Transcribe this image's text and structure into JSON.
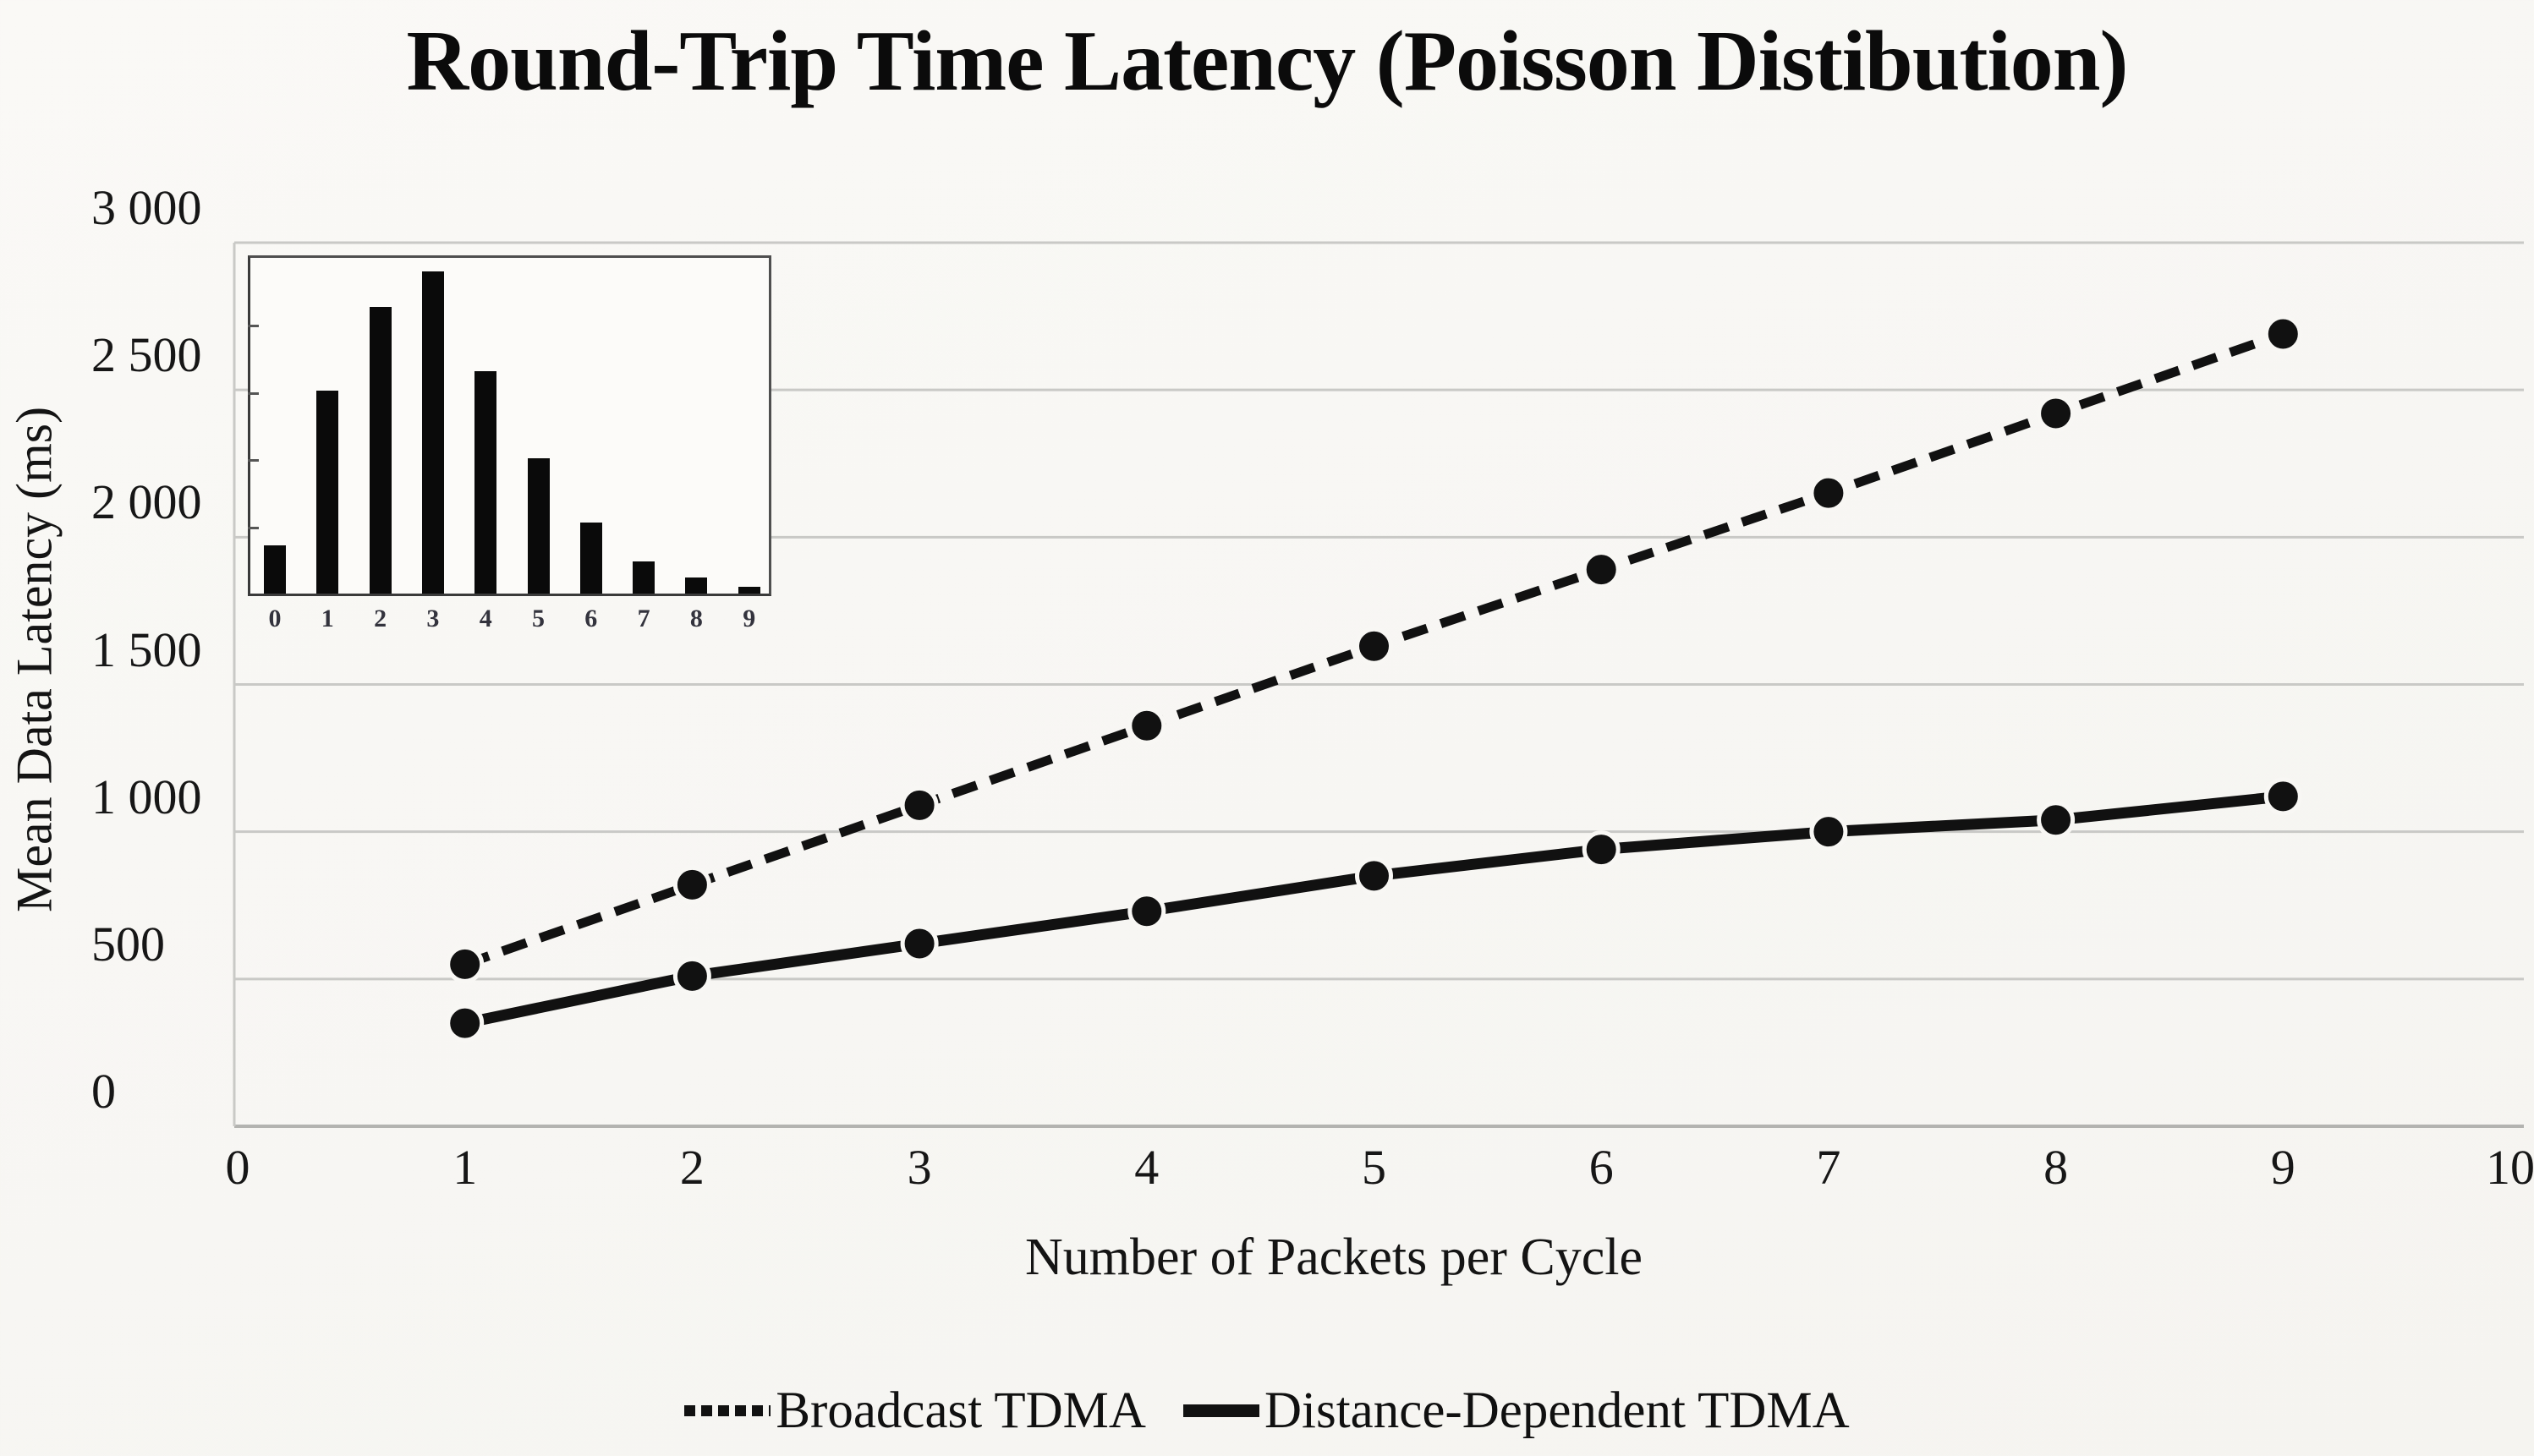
{
  "title": "Round-Trip Time Latency (Poisson Distibution)",
  "colors": {
    "ink": "#111111",
    "grid": "#c9c9c6",
    "zero_axis": "#b3b3b0",
    "background": "#f8f7f4",
    "inset_border": "#4f4f4f",
    "inset_bar": "#0a0a0a"
  },
  "chart_data": {
    "type": "line",
    "title": "Round-Trip Time Latency (Poisson Distibution)",
    "xlabel": "Number of Packets per Cycle",
    "ylabel": "Mean Data Latency (ms)",
    "xlim": [
      0,
      10
    ],
    "ylim": [
      0,
      3000
    ],
    "grid": "horizontal",
    "legend_position": "bottom",
    "x": [
      1,
      2,
      3,
      4,
      5,
      6,
      7,
      8,
      9
    ],
    "series": [
      {
        "name": "Broadcast TDMA",
        "line_style": "dashed",
        "marker": "circle",
        "color": "#111111",
        "values": [
          550,
          820,
          1090,
          1360,
          1630,
          1890,
          2150,
          2420,
          2690
        ]
      },
      {
        "name": "Distance-Dependent TDMA",
        "line_style": "solid",
        "marker": "circle",
        "color": "#111111",
        "values": [
          350,
          510,
          620,
          730,
          850,
          940,
          1000,
          1040,
          1120
        ]
      }
    ],
    "yticks": [
      {
        "value": 0,
        "label": "0"
      },
      {
        "value": 500,
        "label": "500"
      },
      {
        "value": 1000,
        "label": "1 000"
      },
      {
        "value": 1500,
        "label": "1 500"
      },
      {
        "value": 2000,
        "label": "2 000"
      },
      {
        "value": 2500,
        "label": "2 500"
      },
      {
        "value": 3000,
        "label": "3 000"
      }
    ],
    "xticks": [
      {
        "value": 0,
        "label": "0"
      },
      {
        "value": 1,
        "label": "1"
      },
      {
        "value": 2,
        "label": "2"
      },
      {
        "value": 3,
        "label": "3"
      },
      {
        "value": 4,
        "label": "4"
      },
      {
        "value": 5,
        "label": "5"
      },
      {
        "value": 6,
        "label": "6"
      },
      {
        "value": 7,
        "label": "7"
      },
      {
        "value": 8,
        "label": "8"
      },
      {
        "value": 9,
        "label": "9"
      },
      {
        "value": 10,
        "label": "10"
      }
    ],
    "inset": {
      "type": "bar",
      "description": "Poisson distribution histogram (no axis value labels shown)",
      "categories": [
        "0",
        "1",
        "2",
        "3",
        "4",
        "5",
        "6",
        "7",
        "8",
        "9"
      ],
      "values_relative": [
        0.15,
        0.63,
        0.89,
        1.0,
        0.69,
        0.42,
        0.22,
        0.1,
        0.05,
        0.02
      ]
    }
  },
  "legend": {
    "entries": [
      {
        "label": "Broadcast TDMA",
        "style": "dashed"
      },
      {
        "label": "Distance-Dependent TDMA",
        "style": "solid"
      }
    ]
  }
}
